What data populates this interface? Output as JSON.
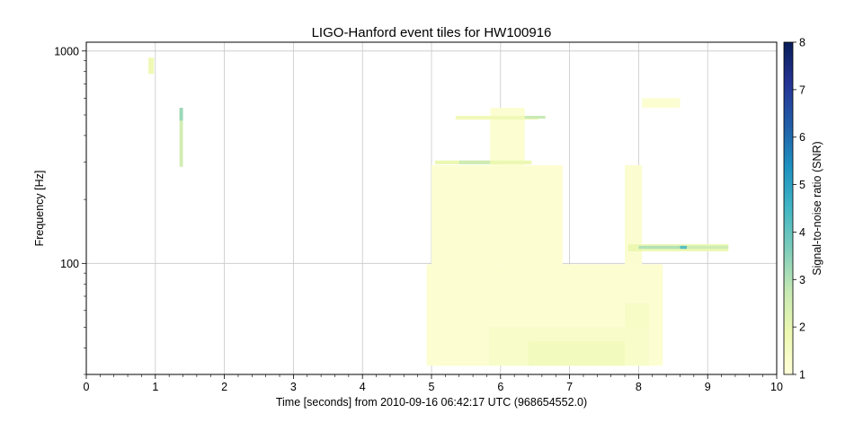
{
  "chart_data": {
    "type": "heatmap",
    "title": "LIGO-Hanford event tiles for HW100916",
    "xlabel": "Time [seconds] from 2010-09-16 06:42:17 UTC (968654552.0)",
    "ylabel": "Frequency [Hz]",
    "xlim": [
      0,
      10
    ],
    "ylim": [
      30,
      1100
    ],
    "yscale": "log",
    "x_ticks": [
      "0",
      "1",
      "2",
      "3",
      "4",
      "5",
      "6",
      "7",
      "8",
      "9",
      "10"
    ],
    "y_ticks": [
      {
        "value": 100,
        "label": "100"
      },
      {
        "value": 1000,
        "label": "1000"
      }
    ],
    "grid": true,
    "colorbar": {
      "label": "Signal-to-noise ratio (SNR)",
      "range": [
        1,
        8
      ],
      "ticks": [
        "1",
        "2",
        "3",
        "4",
        "5",
        "6",
        "7",
        "8"
      ],
      "colormap": [
        "#ffffd9",
        "#edf8b1",
        "#c7e9b4",
        "#7fcdbb",
        "#41b6c4",
        "#1d91c0",
        "#225ea8",
        "#253494",
        "#081d58"
      ]
    },
    "tiles": [
      {
        "t0": 4.93,
        "t1": 8.35,
        "f0": 33,
        "f1": 99,
        "snr": 1.15
      },
      {
        "t0": 5.0,
        "t1": 6.9,
        "f0": 99,
        "f1": 290,
        "snr": 1.15
      },
      {
        "t0": 5.85,
        "t1": 6.35,
        "f0": 290,
        "f1": 540,
        "snr": 1.15
      },
      {
        "t0": 7.8,
        "t1": 8.05,
        "f0": 99,
        "f1": 290,
        "snr": 1.2
      },
      {
        "t0": 8.05,
        "t1": 8.6,
        "f0": 540,
        "f1": 600,
        "snr": 1.15
      },
      {
        "t0": 5.83,
        "t1": 8.15,
        "f0": 33,
        "f1": 50,
        "snr": 1.35
      },
      {
        "t0": 6.4,
        "t1": 7.8,
        "f0": 33,
        "f1": 43,
        "snr": 1.6
      },
      {
        "t0": 7.8,
        "t1": 8.15,
        "f0": 50,
        "f1": 65,
        "snr": 1.4
      },
      {
        "t0": 5.35,
        "t1": 6.55,
        "f0": 475,
        "f1": 495,
        "snr": 1.7
      },
      {
        "t0": 6.35,
        "t1": 6.65,
        "f0": 480,
        "f1": 495,
        "snr": 2.7
      },
      {
        "t0": 5.05,
        "t1": 6.45,
        "f0": 293,
        "f1": 305,
        "snr": 1.9
      },
      {
        "t0": 5.4,
        "t1": 5.85,
        "f0": 293,
        "f1": 305,
        "snr": 2.6
      },
      {
        "t0": 7.85,
        "t1": 9.3,
        "f0": 114,
        "f1": 123,
        "snr": 1.9
      },
      {
        "t0": 8.0,
        "t1": 8.6,
        "f0": 117,
        "f1": 121,
        "snr": 3.0
      },
      {
        "t0": 8.6,
        "t1": 8.7,
        "f0": 117,
        "f1": 121,
        "snr": 4.2
      },
      {
        "t0": 8.7,
        "t1": 9.3,
        "f0": 117,
        "f1": 121,
        "snr": 2.6
      },
      {
        "t0": 0.9,
        "t1": 0.98,
        "f0": 780,
        "f1": 930,
        "snr": 1.8
      },
      {
        "t0": 1.35,
        "t1": 1.4,
        "f0": 285,
        "f1": 540,
        "snr": 2.5
      },
      {
        "t0": 1.35,
        "t1": 1.4,
        "f0": 470,
        "f1": 540,
        "snr": 3.3
      }
    ]
  }
}
